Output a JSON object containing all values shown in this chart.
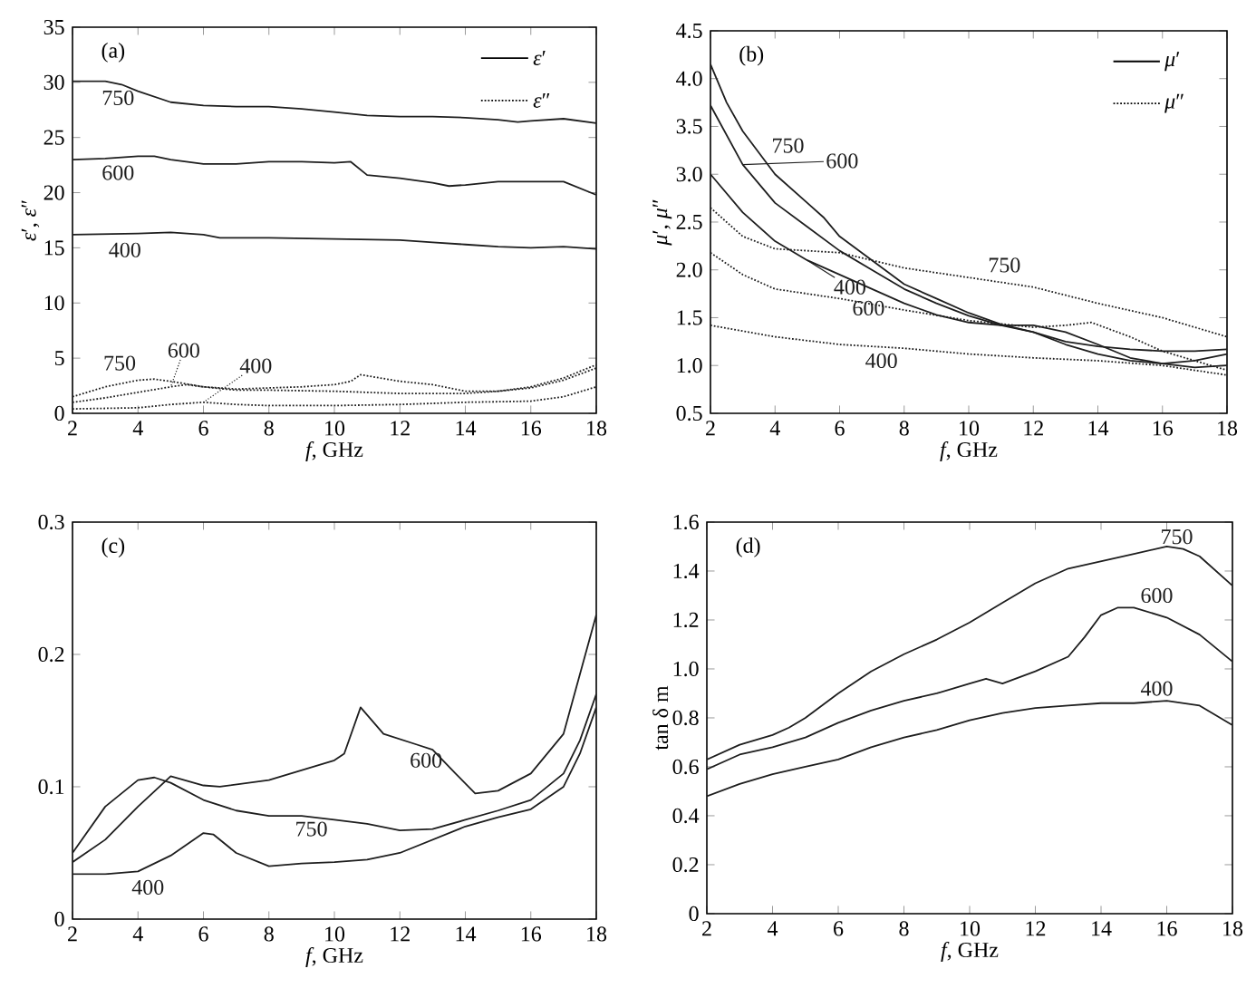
{
  "chart_data": [
    {
      "type": "line",
      "xlabel": "*f*, GHz",
      "ylabel": "*ε*′, *ε*″",
      "xlim": [
        2,
        18
      ],
      "ylim": [
        0,
        35
      ],
      "xticks": [
        2,
        4,
        6,
        8,
        10,
        12,
        14,
        16,
        18
      ],
      "yticks": [
        0,
        5,
        10,
        15,
        20,
        25,
        30,
        35
      ],
      "series": [
        {
          "name": "750",
          "color": "#1e1e1e",
          "line_style": "solid",
          "x": [
            2,
            3,
            3.5,
            4,
            5,
            6,
            7,
            8,
            9,
            10,
            11,
            12,
            13,
            14,
            15,
            15.6,
            16,
            17,
            18
          ],
          "values": [
            30.1,
            30.1,
            29.8,
            29.2,
            28.2,
            27.9,
            27.8,
            27.8,
            27.6,
            27.3,
            27.0,
            26.9,
            26.9,
            26.8,
            26.6,
            26.4,
            26.5,
            26.7,
            26.3
          ]
        },
        {
          "name": "600",
          "color": "#1e1e1e",
          "line_style": "solid",
          "x": [
            2,
            3,
            4,
            4.5,
            5,
            6,
            7,
            8,
            9,
            10,
            10.5,
            11,
            12,
            13,
            13.5,
            14,
            15,
            16,
            17,
            18
          ],
          "values": [
            23.0,
            23.1,
            23.3,
            23.3,
            23.0,
            22.6,
            22.6,
            22.8,
            22.8,
            22.7,
            22.8,
            21.6,
            21.3,
            20.9,
            20.6,
            20.7,
            21.0,
            21.0,
            21.0,
            19.8
          ]
        },
        {
          "name": "400",
          "color": "#1e1e1e",
          "line_style": "solid",
          "x": [
            2,
            4,
            5,
            6,
            6.5,
            8,
            10,
            12,
            13,
            14,
            15,
            16,
            17,
            18
          ],
          "values": [
            16.2,
            16.3,
            16.4,
            16.2,
            15.9,
            15.9,
            15.8,
            15.7,
            15.5,
            15.3,
            15.1,
            15.0,
            15.1,
            14.9
          ]
        },
        {
          "name": "750",
          "color": "#1e1e1e",
          "line_style": "dotted",
          "x": [
            2,
            3,
            4,
            4.5,
            5,
            6,
            7,
            8,
            9,
            10,
            10.5,
            10.8,
            11,
            12,
            13,
            14,
            15,
            16,
            17,
            18
          ],
          "values": [
            1.5,
            2.4,
            3.0,
            3.1,
            2.9,
            2.4,
            2.2,
            2.3,
            2.4,
            2.6,
            2.9,
            3.5,
            3.4,
            2.9,
            2.6,
            2.0,
            2.0,
            2.4,
            3.2,
            4.4
          ]
        },
        {
          "name": "600",
          "color": "#1e1e1e",
          "line_style": "dotted",
          "x": [
            2,
            3,
            4,
            5,
            5.5,
            6,
            7,
            8,
            10,
            12,
            14,
            15,
            16,
            17,
            18
          ],
          "values": [
            1.0,
            1.4,
            1.9,
            2.4,
            2.6,
            2.4,
            2.1,
            2.1,
            2.0,
            1.8,
            1.8,
            2.0,
            2.3,
            3.0,
            4.1
          ]
        },
        {
          "name": "400",
          "color": "#1e1e1e",
          "line_style": "dotted",
          "x": [
            2,
            4,
            5,
            6,
            7,
            8,
            10,
            12,
            14,
            16,
            17,
            18
          ],
          "values": [
            0.4,
            0.5,
            0.8,
            1.0,
            0.8,
            0.7,
            0.7,
            0.8,
            1.0,
            1.1,
            1.5,
            2.4
          ]
        }
      ],
      "annotations": [
        "(a)",
        "*ε*′",
        "*ε*″"
      ]
    },
    {
      "type": "line",
      "xlabel": "*f*, GHz",
      "ylabel": "*μ*′, *μ*″",
      "xlim": [
        2,
        18
      ],
      "ylim": [
        0.5,
        4.5
      ],
      "xticks": [
        2,
        4,
        6,
        8,
        10,
        12,
        14,
        16,
        18
      ],
      "yticks": [
        {
          "value": 0.5,
          "label": "0.5"
        },
        {
          "value": 1,
          "label": "1.0"
        },
        {
          "value": 1.5,
          "label": "1.5"
        },
        {
          "value": 2,
          "label": "2.0"
        },
        {
          "value": 2.5,
          "label": "2.5"
        },
        {
          "value": 3,
          "label": "3.0"
        },
        {
          "value": 3.5,
          "label": "3.5"
        },
        {
          "value": 4,
          "label": "4.0"
        },
        {
          "value": 4.5,
          "label": "4.5"
        }
      ],
      "series": [
        {
          "name": "750",
          "color": "#1e1e1e",
          "line_style": "solid",
          "x": [
            2,
            2.5,
            3,
            4,
            5,
            5.5,
            6,
            7,
            8,
            9,
            10,
            11,
            12,
            13,
            14,
            15,
            16,
            17,
            18
          ],
          "values": [
            4.15,
            3.75,
            3.45,
            3.0,
            2.7,
            2.55,
            2.35,
            2.1,
            1.85,
            1.7,
            1.55,
            1.43,
            1.35,
            1.22,
            1.12,
            1.05,
            1.02,
            1.05,
            1.12
          ]
        },
        {
          "name": "600",
          "color": "#1e1e1e",
          "line_style": "solid",
          "x": [
            2,
            3,
            4,
            5,
            6,
            7,
            8,
            9,
            10,
            11,
            12,
            13,
            14,
            15,
            16,
            17,
            18
          ],
          "values": [
            3.72,
            3.1,
            2.7,
            2.45,
            2.2,
            2.0,
            1.8,
            1.65,
            1.52,
            1.42,
            1.35,
            1.25,
            1.2,
            1.17,
            1.15,
            1.15,
            1.17
          ]
        },
        {
          "name": "400",
          "color": "#1e1e1e",
          "line_style": "solid",
          "x": [
            2,
            3,
            4,
            5,
            6,
            7,
            8,
            9,
            10,
            11,
            12,
            13,
            14,
            15,
            16,
            17,
            18
          ],
          "values": [
            3.0,
            2.6,
            2.3,
            2.1,
            1.95,
            1.8,
            1.65,
            1.53,
            1.45,
            1.42,
            1.42,
            1.35,
            1.22,
            1.08,
            1.02,
            0.98,
            1.0
          ]
        },
        {
          "name": "750",
          "color": "#1e1e1e",
          "line_style": "dotted",
          "x": [
            2,
            3,
            4,
            5,
            6,
            7,
            8,
            10,
            12,
            14,
            16,
            17,
            18
          ],
          "values": [
            2.65,
            2.35,
            2.22,
            2.2,
            2.18,
            2.1,
            2.02,
            1.92,
            1.82,
            1.65,
            1.5,
            1.4,
            1.3
          ]
        },
        {
          "name": "600",
          "color": "#1e1e1e",
          "line_style": "dotted",
          "x": [
            2,
            3,
            4,
            6,
            8,
            10,
            12,
            13,
            13.8,
            15,
            16,
            17,
            18
          ],
          "values": [
            2.18,
            1.95,
            1.8,
            1.7,
            1.58,
            1.47,
            1.4,
            1.42,
            1.45,
            1.3,
            1.15,
            1.05,
            0.95
          ]
        },
        {
          "name": "400",
          "color": "#1e1e1e",
          "line_style": "dotted",
          "x": [
            2,
            4,
            6,
            8,
            10,
            12,
            14,
            16,
            18
          ],
          "values": [
            1.42,
            1.3,
            1.22,
            1.18,
            1.12,
            1.08,
            1.05,
            1.0,
            0.9
          ]
        }
      ],
      "annotations": [
        "(b)",
        "*μ*′",
        "*μ*″"
      ]
    },
    {
      "type": "line",
      "xlabel": "*f*, GHz",
      "xlim": [
        2,
        18
      ],
      "ylim": [
        0,
        0.3
      ],
      "xticks": [
        2,
        4,
        6,
        8,
        10,
        12,
        14,
        16,
        18
      ],
      "yticks": [
        0,
        0.1,
        0.2,
        0.3
      ],
      "series": [
        {
          "name": "600",
          "color": "#1e1e1e",
          "line_style": "solid",
          "x": [
            2,
            3,
            4,
            5,
            6,
            6.5,
            8,
            10,
            10.3,
            10.8,
            11.5,
            12.5,
            13,
            13.7,
            14.3,
            15,
            16,
            17,
            18
          ],
          "values": [
            0.043,
            0.06,
            0.085,
            0.108,
            0.101,
            0.1,
            0.105,
            0.12,
            0.125,
            0.16,
            0.14,
            0.132,
            0.128,
            0.11,
            0.095,
            0.097,
            0.11,
            0.14,
            0.23
          ]
        },
        {
          "name": "750",
          "color": "#1e1e1e",
          "line_style": "solid",
          "x": [
            2,
            3,
            4,
            4.5,
            5,
            6,
            7,
            8,
            9,
            10,
            11,
            12,
            13,
            14,
            15,
            16,
            17,
            17.5,
            18
          ],
          "values": [
            0.05,
            0.085,
            0.105,
            0.107,
            0.103,
            0.09,
            0.082,
            0.078,
            0.078,
            0.075,
            0.072,
            0.067,
            0.068,
            0.075,
            0.082,
            0.09,
            0.11,
            0.135,
            0.17
          ]
        },
        {
          "name": "400",
          "color": "#1e1e1e",
          "line_style": "solid",
          "x": [
            2,
            3,
            4,
            5,
            6,
            6.3,
            7,
            8,
            9,
            10,
            11,
            12,
            13,
            14,
            15,
            16,
            17,
            17.5,
            18
          ],
          "values": [
            0.034,
            0.034,
            0.036,
            0.048,
            0.065,
            0.064,
            0.05,
            0.04,
            0.042,
            0.043,
            0.045,
            0.05,
            0.06,
            0.07,
            0.077,
            0.083,
            0.1,
            0.125,
            0.16
          ]
        }
      ],
      "annotations": [
        "(c)"
      ]
    },
    {
      "type": "line",
      "xlabel": "*f*, GHz",
      "ylabel": "tan δ m",
      "xlim": [
        2,
        18
      ],
      "ylim": [
        0,
        1.6
      ],
      "xticks": [
        2,
        4,
        6,
        8,
        10,
        12,
        14,
        16,
        18
      ],
      "yticks": [
        0,
        0.2,
        0.4,
        0.6,
        0.8,
        {
          "value": 1,
          "label": "1.0"
        },
        1.2,
        1.4,
        1.6
      ],
      "series": [
        {
          "name": "750",
          "color": "#1e1e1e",
          "line_style": "solid",
          "x": [
            2,
            3,
            4,
            4.5,
            5,
            6,
            7,
            8,
            9,
            10,
            11,
            12,
            13,
            14,
            15,
            16,
            16.5,
            17,
            18
          ],
          "values": [
            0.63,
            0.69,
            0.73,
            0.76,
            0.8,
            0.9,
            0.99,
            1.06,
            1.12,
            1.19,
            1.27,
            1.35,
            1.41,
            1.44,
            1.47,
            1.5,
            1.49,
            1.46,
            1.34
          ]
        },
        {
          "name": "600",
          "color": "#1e1e1e",
          "line_style": "solid",
          "x": [
            2,
            3,
            4,
            5,
            6,
            7,
            8,
            9,
            10,
            10.5,
            11,
            12,
            13,
            13.5,
            14,
            14.5,
            15,
            16,
            17,
            18
          ],
          "values": [
            0.59,
            0.65,
            0.68,
            0.72,
            0.78,
            0.83,
            0.87,
            0.9,
            0.94,
            0.96,
            0.94,
            0.99,
            1.05,
            1.13,
            1.22,
            1.25,
            1.25,
            1.21,
            1.14,
            1.03
          ]
        },
        {
          "name": "400",
          "color": "#1e1e1e",
          "line_style": "solid",
          "x": [
            2,
            3,
            4,
            5,
            6,
            7,
            8,
            9,
            10,
            11,
            12,
            13,
            14,
            15,
            16,
            17,
            18
          ],
          "values": [
            0.48,
            0.53,
            0.57,
            0.6,
            0.63,
            0.68,
            0.72,
            0.75,
            0.79,
            0.82,
            0.84,
            0.85,
            0.86,
            0.86,
            0.87,
            0.85,
            0.77
          ]
        }
      ],
      "annotations": [
        "(d)"
      ]
    }
  ]
}
